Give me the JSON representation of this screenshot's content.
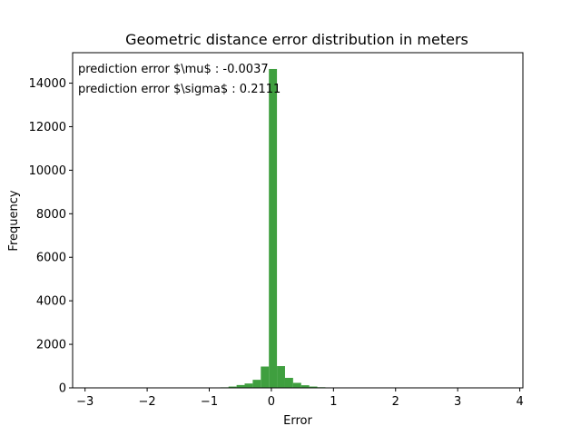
{
  "chart_data": {
    "type": "bar",
    "title": "Geometric distance error distribution in meters",
    "xlabel": "Error",
    "ylabel": "Frequency",
    "xlim": [
      -3.2,
      4.05
    ],
    "ylim": [
      0,
      15400
    ],
    "xticks": [
      -3,
      -2,
      -1,
      0,
      1,
      2,
      3,
      4
    ],
    "yticks": [
      0,
      2000,
      4000,
      6000,
      8000,
      10000,
      12000,
      14000
    ],
    "bar_color": "#3f9f3f",
    "annotations": [
      "prediction error $\\mu$ : -0.0037",
      "prediction error $\\sigma$ : 0.2111"
    ],
    "bins": [
      {
        "x0": -0.95,
        "x1": -0.82,
        "value": 10
      },
      {
        "x0": -0.82,
        "x1": -0.69,
        "value": 25
      },
      {
        "x0": -0.69,
        "x1": -0.56,
        "value": 60
      },
      {
        "x0": -0.56,
        "x1": -0.43,
        "value": 130
      },
      {
        "x0": -0.43,
        "x1": -0.3,
        "value": 200
      },
      {
        "x0": -0.3,
        "x1": -0.17,
        "value": 370
      },
      {
        "x0": -0.17,
        "x1": -0.04,
        "value": 980
      },
      {
        "x0": -0.04,
        "x1": 0.09,
        "value": 14650
      },
      {
        "x0": 0.09,
        "x1": 0.22,
        "value": 1000
      },
      {
        "x0": 0.22,
        "x1": 0.35,
        "value": 460
      },
      {
        "x0": 0.35,
        "x1": 0.48,
        "value": 230
      },
      {
        "x0": 0.48,
        "x1": 0.61,
        "value": 120
      },
      {
        "x0": 0.61,
        "x1": 0.74,
        "value": 60
      },
      {
        "x0": 0.74,
        "x1": 0.87,
        "value": 30
      },
      {
        "x0": 0.87,
        "x1": 1.0,
        "value": 15
      }
    ]
  }
}
